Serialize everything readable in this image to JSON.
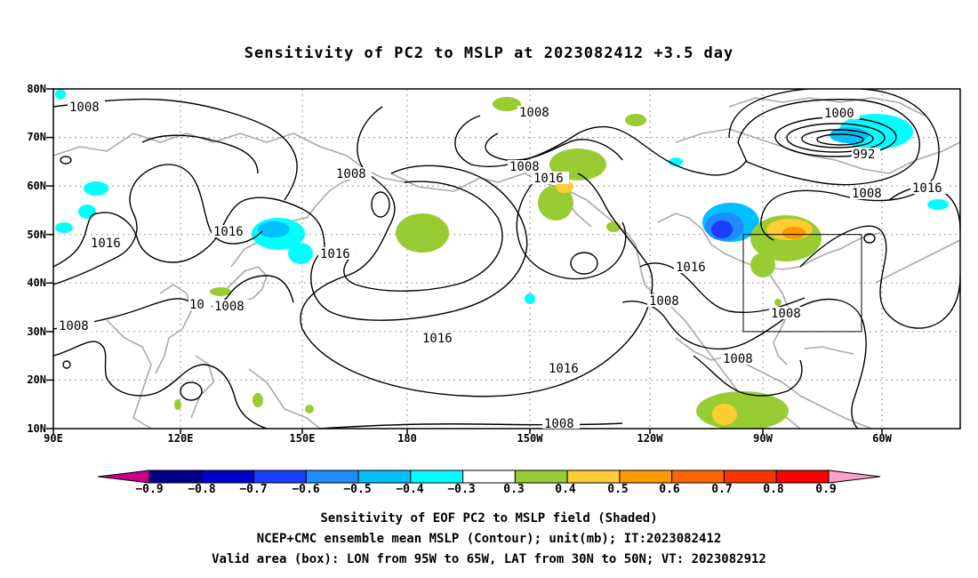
{
  "title": "Sensitivity of PC2 to MSLP at 2023082412 +3.5 day",
  "lat_labels": [
    "80N",
    "70N",
    "60N",
    "50N",
    "40N",
    "30N",
    "20N",
    "10N"
  ],
  "lon_labels": [
    "90E",
    "120E",
    "150E",
    "180",
    "150W",
    "120W",
    "90W",
    "60W"
  ],
  "contour_labels": [
    "1008",
    "1008",
    "1008",
    "1008",
    "1000",
    "992",
    "1008",
    "1016",
    "1016",
    "1016",
    "1016",
    "1016",
    "1016",
    "1016",
    "1016",
    "1008",
    "1008",
    "1008",
    "1008",
    "1008",
    "1008",
    "10"
  ],
  "colorbar": {
    "ticks": [
      "−0.9",
      "−0.8",
      "−0.7",
      "−0.6",
      "−0.5",
      "−0.4",
      "−0.3",
      "0.3",
      "0.4",
      "0.5",
      "0.6",
      "0.7",
      "0.8",
      "0.9"
    ],
    "colors": [
      "#00008b",
      "#0000cd",
      "#1c3cff",
      "#1e8cff",
      "#00c0ff",
      "#00ffff",
      "#ffffff",
      "#99cc33",
      "#ffcc33",
      "#ff9900",
      "#ff6600",
      "#ff3300",
      "#ff0000"
    ],
    "left_tip_color": "#c8008c",
    "right_tip_color": "#ffa0c8"
  },
  "valid_box": {
    "lon_west": -95,
    "lon_east": -65,
    "lat_south": 30,
    "lat_north": 50
  },
  "captions": [
    "Sensitivity of EOF PC2 to MSLP field (Shaded)",
    "NCEP+CMC ensemble mean MSLP (Contour); unit(mb); IT:2023082412",
    "Valid area (box): LON from 95W to 65W, LAT from 30N to 50N; VT: 2023082912"
  ]
}
